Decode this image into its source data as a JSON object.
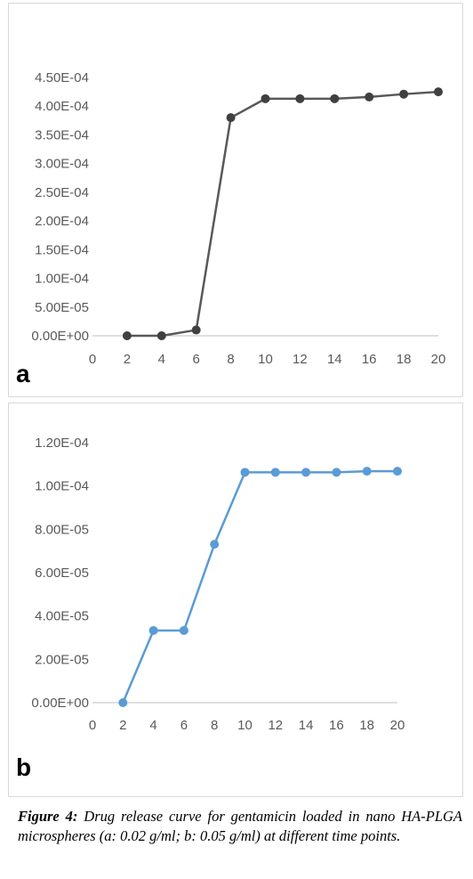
{
  "chart_data": [
    {
      "type": "line",
      "panel_label": "a",
      "x": [
        2,
        4,
        6,
        8,
        10,
        12,
        14,
        16,
        18,
        20
      ],
      "series": [
        {
          "values": [
            0,
            0,
            1e-05,
            0.00038,
            0.000413,
            0.000413,
            0.000413,
            0.000416,
            0.000421,
            0.000425
          ]
        }
      ],
      "xlim": [
        0,
        20
      ],
      "ylim": [
        0,
        0.00045
      ],
      "x_tick_labels": [
        "0",
        "2",
        "4",
        "6",
        "8",
        "10",
        "12",
        "14",
        "16",
        "18",
        "20"
      ],
      "y_tick_labels": [
        "0.00E+00",
        "5.00E-05",
        "1.00E-04",
        "1.50E-04",
        "2.00E-04",
        "2.50E-04",
        "3.00E-04",
        "3.50E-04",
        "4.00E-04",
        "4.50E-04"
      ],
      "gridlines": false,
      "line_color": "#595959",
      "marker_color": "#404040"
    },
    {
      "type": "line",
      "panel_label": "b",
      "x": [
        2,
        4,
        6,
        8,
        10,
        12,
        14,
        16,
        18,
        20
      ],
      "series": [
        {
          "values": [
            0,
            3.33e-05,
            3.33e-05,
            7.31e-05,
            0.0001063,
            0.0001063,
            0.0001063,
            0.0001063,
            0.0001068,
            0.0001068
          ]
        }
      ],
      "xlim": [
        0,
        20
      ],
      "ylim": [
        0,
        0.00012
      ],
      "x_tick_labels": [
        "0",
        "2",
        "4",
        "6",
        "8",
        "10",
        "12",
        "14",
        "16",
        "18",
        "20"
      ],
      "y_tick_labels": [
        "0.00E+00",
        "2.00E-05",
        "4.00E-05",
        "6.00E-05",
        "8.00E-05",
        "1.00E-04",
        "1.20E-04"
      ],
      "gridlines": false,
      "line_color": "#5b9bd5",
      "marker_color": "#5b9bd5"
    }
  ],
  "caption": {
    "figure_label": "Figure 4:",
    "text": " Drug release curve for gentamicin loaded in nano HA-PLGA microspheres (a: 0.02 g/ml; b: 0.05 g/ml) at different time points."
  }
}
